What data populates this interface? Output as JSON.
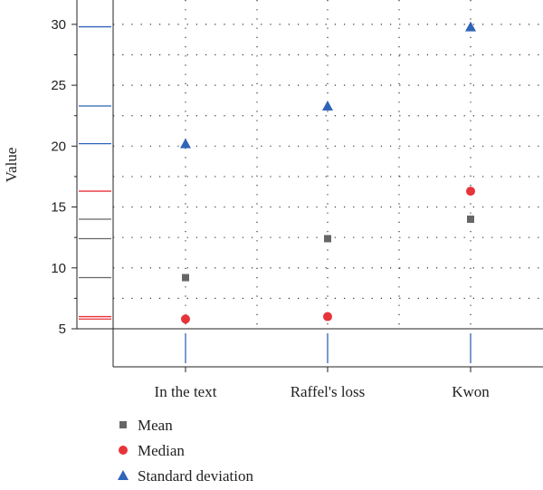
{
  "chart_data": {
    "type": "scatter",
    "categories": [
      "In the text",
      "Raffel's loss",
      "Kwon"
    ],
    "ylabel": "Value",
    "ylim": [
      5,
      32
    ],
    "yticks": [
      5,
      10,
      15,
      20,
      25,
      30
    ],
    "grid": true,
    "legend_position": "bottom-left",
    "series": [
      {
        "name": "Mean",
        "marker": "square",
        "color": "#666666",
        "values": [
          9.2,
          12.4,
          14.0
        ]
      },
      {
        "name": "Median",
        "marker": "circle",
        "color": "#e8333a",
        "values": [
          5.8,
          6.0,
          16.3
        ]
      },
      {
        "name": "Standard deviation",
        "marker": "triangle",
        "color": "#2f64b8",
        "values": [
          20.2,
          23.3,
          29.8
        ]
      }
    ]
  }
}
